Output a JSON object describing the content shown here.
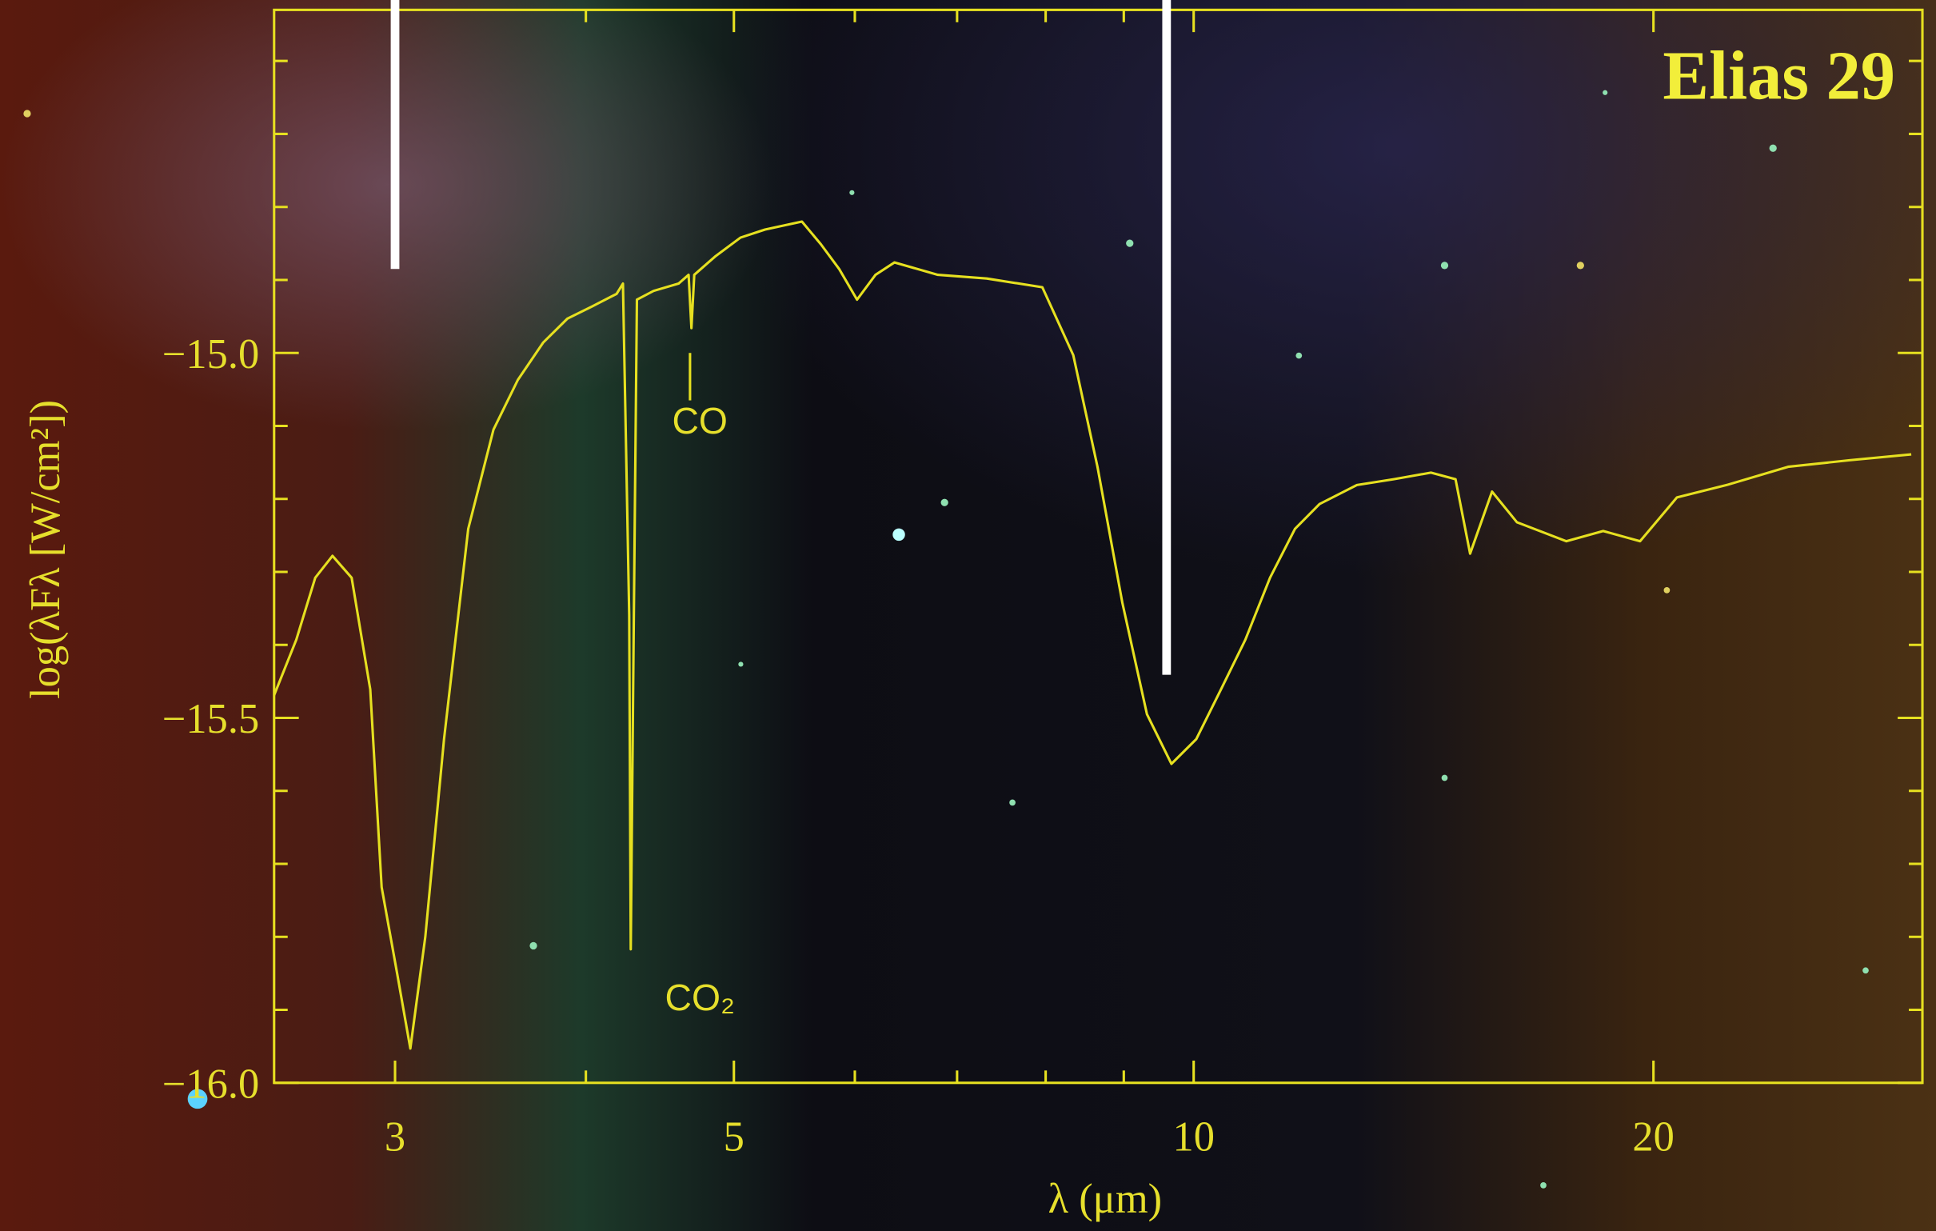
{
  "chart_data": {
    "type": "line",
    "title": "Elias 29",
    "xlabel": "λ (μm)",
    "ylabel": "log(λFλ [W/cm²])",
    "xscale": "log",
    "xlim": [
      2.5,
      30
    ],
    "ylim": [
      -16.0,
      -14.53
    ],
    "xticks": [
      3,
      5,
      10,
      20
    ],
    "xminor": [
      4,
      6,
      7,
      8,
      9
    ],
    "yticks": [
      {
        "value": -16.0,
        "label": "−16.0"
      },
      {
        "value": -15.5,
        "label": "−15.5"
      },
      {
        "value": -15.0,
        "label": "−15.0"
      }
    ],
    "yminor": [
      -15.9,
      -15.8,
      -15.7,
      -15.6,
      -15.4,
      -15.3,
      -15.2,
      -15.1,
      -14.9,
      -14.8,
      -14.7,
      -14.6
    ],
    "color": "#e6e020",
    "x": [
      2.5,
      2.585,
      2.66,
      2.73,
      2.81,
      2.89,
      2.94,
      3.01,
      3.07,
      3.14,
      3.23,
      3.35,
      3.48,
      3.61,
      3.75,
      3.89,
      4.04,
      4.19,
      4.23,
      4.27,
      4.28,
      4.3,
      4.32,
      4.43,
      4.6,
      4.67,
      4.69,
      4.71,
      4.86,
      5.05,
      5.24,
      5.54,
      5.7,
      5.86,
      6.02,
      6.19,
      6.37,
      6.8,
      7.32,
      7.96,
      8.34,
      8.65,
      8.98,
      9.32,
      9.67,
      10.04,
      10.42,
      10.81,
      11.22,
      11.65,
      12.09,
      12.79,
      13.52,
      14.3,
      14.84,
      15.17,
      15.68,
      16.28,
      17.54,
      18.54,
      19.6,
      20.72,
      22.33,
      24.5,
      26.88,
      29.5
    ],
    "values": [
      -15.469,
      -15.393,
      -15.308,
      -15.278,
      -15.308,
      -15.461,
      -15.732,
      -15.851,
      -15.953,
      -15.8,
      -15.529,
      -15.241,
      -15.105,
      -15.037,
      -14.986,
      -14.953,
      -14.936,
      -14.919,
      -14.905,
      -15.359,
      -15.817,
      -15.359,
      -14.927,
      -14.915,
      -14.905,
      -14.893,
      -14.966,
      -14.893,
      -14.868,
      -14.842,
      -14.831,
      -14.82,
      -14.851,
      -14.885,
      -14.927,
      -14.893,
      -14.876,
      -14.893,
      -14.898,
      -14.91,
      -15.003,
      -15.156,
      -15.342,
      -15.495,
      -15.563,
      -15.529,
      -15.461,
      -15.393,
      -15.308,
      -15.241,
      -15.207,
      -15.181,
      -15.173,
      -15.164,
      -15.173,
      -15.275,
      -15.19,
      -15.232,
      -15.258,
      -15.244,
      -15.258,
      -15.198,
      -15.181,
      -15.156,
      -15.147,
      -15.139
    ],
    "markers": [
      {
        "x": 3.0,
        "y": -14.885
      },
      {
        "x": 9.6,
        "y": -15.441
      }
    ],
    "annotations": [
      {
        "text": "CO",
        "x": 4.68,
        "y": -15.09,
        "line": [
          -15.0,
          -15.065
        ]
      },
      {
        "text": "CO₂",
        "x": 4.68,
        "y": -15.88
      }
    ]
  }
}
